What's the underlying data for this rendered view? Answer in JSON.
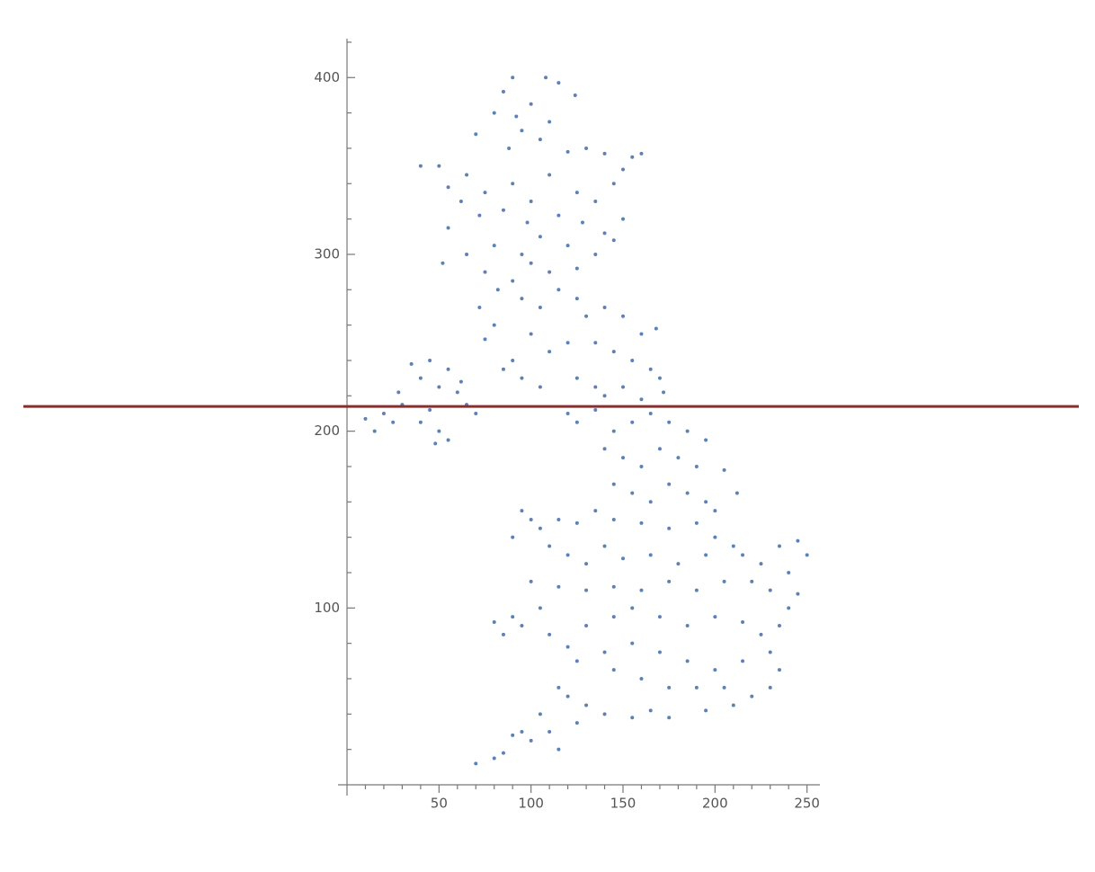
{
  "chart_data": {
    "type": "scatter",
    "xlim": [
      0,
      257
    ],
    "ylim": [
      0,
      422
    ],
    "xticks": [
      50,
      100,
      150,
      200,
      250
    ],
    "yticks": [
      100,
      200,
      300,
      400
    ],
    "xminor": [
      10,
      20,
      30,
      40,
      60,
      70,
      80,
      90,
      110,
      120,
      130,
      140,
      160,
      170,
      180,
      190,
      210,
      220,
      230,
      240
    ],
    "yminor": [
      20,
      40,
      60,
      80,
      120,
      140,
      160,
      180,
      220,
      240,
      260,
      280,
      320,
      340,
      360,
      380,
      420
    ],
    "hline": {
      "value": 214,
      "color": "#8e2b2b"
    },
    "series": [
      {
        "color": "#5e81b5",
        "x": [
          90,
          108,
          115,
          85,
          124,
          100,
          92,
          110,
          80,
          95,
          105,
          70,
          88,
          120,
          130,
          140,
          155,
          160,
          150,
          145,
          40,
          50,
          55,
          65,
          75,
          90,
          100,
          110,
          125,
          135,
          150,
          62,
          72,
          85,
          98,
          115,
          128,
          140,
          55,
          65,
          52,
          80,
          95,
          105,
          120,
          135,
          145,
          75,
          82,
          90,
          110,
          100,
          125,
          72,
          80,
          75,
          95,
          105,
          115,
          125,
          130,
          140,
          150,
          160,
          168,
          100,
          110,
          120,
          135,
          145,
          155,
          165,
          170,
          90,
          95,
          105,
          125,
          135,
          140,
          150,
          160,
          172,
          85,
          10,
          15,
          20,
          25,
          28,
          35,
          40,
          45,
          50,
          55,
          60,
          65,
          70,
          45,
          40,
          50,
          55,
          48,
          30,
          62,
          120,
          125,
          135,
          145,
          155,
          165,
          175,
          185,
          195,
          140,
          150,
          160,
          170,
          180,
          190,
          205,
          212,
          145,
          155,
          165,
          175,
          185,
          195,
          200,
          95,
          100,
          105,
          115,
          125,
          135,
          145,
          160,
          175,
          190,
          200,
          210,
          90,
          110,
          120,
          130,
          140,
          150,
          165,
          180,
          195,
          215,
          225,
          235,
          245,
          250,
          240,
          230,
          240,
          245,
          220,
          205,
          190,
          175,
          160,
          145,
          130,
          115,
          100,
          105,
          90,
          80,
          85,
          95,
          110,
          120,
          130,
          145,
          155,
          170,
          185,
          200,
          215,
          225,
          235,
          230,
          215,
          200,
          185,
          170,
          155,
          140,
          125,
          190,
          205,
          220,
          235,
          175,
          160,
          145,
          130,
          140,
          155,
          165,
          175,
          195,
          210,
          230,
          115,
          105,
          110,
          100,
          115,
          95,
          90,
          85,
          80,
          70,
          120,
          125
        ],
        "y": [
          400,
          400,
          397,
          392,
          390,
          385,
          378,
          375,
          380,
          370,
          365,
          368,
          360,
          358,
          360,
          357,
          355,
          357,
          348,
          340,
          350,
          350,
          338,
          345,
          335,
          340,
          330,
          345,
          335,
          330,
          320,
          330,
          322,
          325,
          318,
          322,
          318,
          312,
          315,
          300,
          295,
          305,
          300,
          310,
          305,
          300,
          308,
          290,
          280,
          285,
          290,
          295,
          292,
          270,
          260,
          252,
          275,
          270,
          280,
          275,
          265,
          270,
          265,
          255,
          258,
          255,
          245,
          250,
          250,
          245,
          240,
          235,
          230,
          240,
          230,
          225,
          230,
          225,
          220,
          225,
          218,
          222,
          235,
          207,
          200,
          210,
          205,
          222,
          238,
          230,
          240,
          225,
          235,
          222,
          215,
          210,
          212,
          205,
          200,
          195,
          193,
          215,
          228,
          210,
          205,
          212,
          200,
          205,
          210,
          205,
          200,
          195,
          190,
          185,
          180,
          190,
          185,
          180,
          178,
          165,
          170,
          165,
          160,
          170,
          165,
          160,
          155,
          155,
          150,
          145,
          150,
          148,
          155,
          150,
          148,
          145,
          148,
          140,
          135,
          140,
          135,
          130,
          125,
          135,
          128,
          130,
          125,
          130,
          130,
          125,
          135,
          138,
          130,
          120,
          110,
          100,
          108,
          115,
          115,
          110,
          115,
          110,
          112,
          110,
          112,
          115,
          100,
          95,
          92,
          85,
          90,
          85,
          78,
          90,
          95,
          100,
          95,
          90,
          95,
          92,
          85,
          90,
          75,
          70,
          65,
          70,
          75,
          80,
          75,
          70,
          55,
          55,
          50,
          65,
          55,
          60,
          65,
          45,
          40,
          38,
          42,
          38,
          42,
          45,
          55,
          55,
          40,
          30,
          25,
          20,
          30,
          28,
          18,
          15,
          12,
          50,
          35
        ]
      }
    ]
  }
}
